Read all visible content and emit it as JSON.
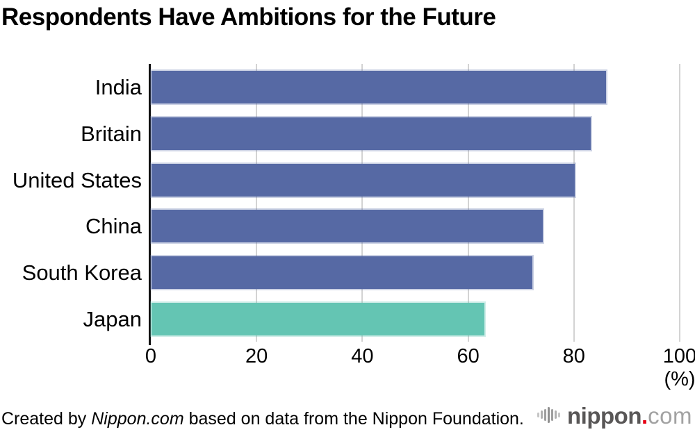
{
  "title": "Respondents Have Ambitions for the Future",
  "chart_data": {
    "type": "bar",
    "orientation": "horizontal",
    "title": "Respondents Have Ambitions for the Future",
    "categories": [
      "India",
      "Britain",
      "United States",
      "China",
      "South Korea",
      "Japan"
    ],
    "values": [
      86,
      83,
      80,
      74,
      72,
      63
    ],
    "unit": "%",
    "xlabel": "(%)",
    "xlim": [
      0,
      100
    ],
    "xticks": [
      0,
      20,
      40,
      60,
      80,
      100
    ],
    "grid": true,
    "legend": false,
    "data_labels": false,
    "bar_colors": [
      "#5669a4",
      "#5669a4",
      "#5669a4",
      "#5669a4",
      "#5669a4",
      "#64c5b3"
    ],
    "highlighted_category": "Japan"
  },
  "axis": {
    "tick_labels": [
      "0",
      "20",
      "40",
      "60",
      "80",
      "100"
    ],
    "unit_label": "(%)"
  },
  "footer": {
    "credit_prefix": "Created by ",
    "credit_source": "Nippon.com",
    "credit_suffix": " based on data from the Nippon Foundation.",
    "logo": {
      "name": "nippon.com",
      "word": "nippon",
      "dot": ".",
      "tld": "com",
      "colors": {
        "word": "#595757",
        "dot": "#e60012",
        "tld": "#a2a2a2",
        "icon": "#b5b5b5"
      }
    }
  },
  "colors": {
    "bar_default": "#5669a4",
    "bar_highlight": "#64c5b3",
    "gridline": "#d3d3d3",
    "axis_line": "#111111",
    "background": "#ffffff",
    "text": "#000000"
  }
}
